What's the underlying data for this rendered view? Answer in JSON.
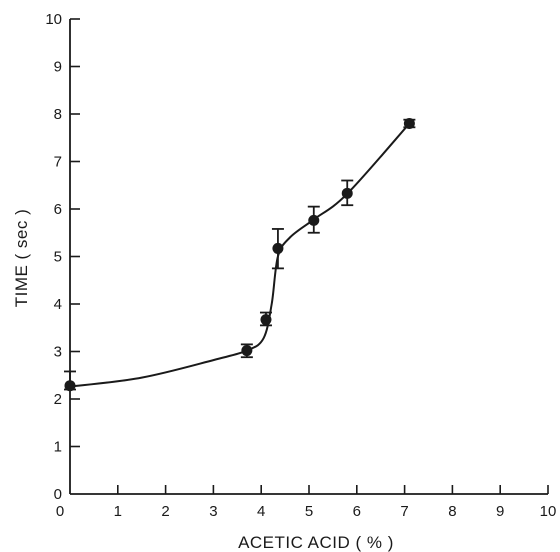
{
  "chart_data": {
    "type": "scatter",
    "xlabel": "ACETIC ACID ( % )",
    "ylabel": "TIME ( sec )",
    "xlim": [
      0,
      10
    ],
    "ylim": [
      0,
      10
    ],
    "xticks": [
      "0",
      "1",
      "2",
      "3",
      "4",
      "5",
      "6",
      "7",
      "8",
      "9",
      "10"
    ],
    "yticks": [
      "0",
      "1",
      "2",
      "3",
      "4",
      "5",
      "6",
      "7",
      "8",
      "9",
      "10"
    ],
    "grid": false,
    "points": [
      {
        "x": 0.0,
        "y": 2.28,
        "err_low": 2.2,
        "err_high": 2.58
      },
      {
        "x": 3.7,
        "y": 3.02,
        "err_low": 2.88,
        "err_high": 3.15
      },
      {
        "x": 4.1,
        "y": 3.67,
        "err_low": 3.55,
        "err_high": 3.82
      },
      {
        "x": 4.35,
        "y": 5.17,
        "err_low": 4.75,
        "err_high": 5.58
      },
      {
        "x": 5.1,
        "y": 5.76,
        "err_low": 5.5,
        "err_high": 6.05
      },
      {
        "x": 5.8,
        "y": 6.33,
        "err_low": 6.08,
        "err_high": 6.6
      },
      {
        "x": 7.1,
        "y": 7.8,
        "err_low": 7.72,
        "err_high": 7.88
      }
    ],
    "fit_curve": [
      {
        "x": 0.0,
        "y": 2.26
      },
      {
        "x": 1.5,
        "y": 2.45
      },
      {
        "x": 3.0,
        "y": 2.82
      },
      {
        "x": 3.7,
        "y": 3.02
      },
      {
        "x": 4.05,
        "y": 3.28
      },
      {
        "x": 4.22,
        "y": 4.0
      },
      {
        "x": 4.35,
        "y": 5.0
      },
      {
        "x": 4.6,
        "y": 5.4
      },
      {
        "x": 5.1,
        "y": 5.78
      },
      {
        "x": 5.8,
        "y": 6.32
      },
      {
        "x": 7.1,
        "y": 7.8
      }
    ],
    "colors": {
      "ink": "#1a1a1a",
      "background": "#ffffff"
    }
  }
}
